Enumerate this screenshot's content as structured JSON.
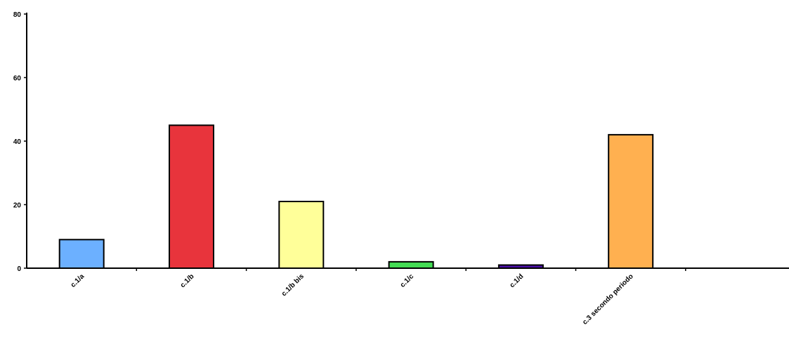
{
  "chart_data": {
    "type": "bar",
    "title": "",
    "xlabel": "",
    "ylabel": "",
    "categories": [
      "c.1/a",
      "c.1/b",
      "c.1/b bis",
      "c.1/c",
      "c.1/d",
      "c.3 secondo periodo",
      ""
    ],
    "values": [
      9,
      45,
      21,
      2,
      1,
      42,
      0
    ],
    "colors": [
      "#6cb0ff",
      "#e8343c",
      "#ffff99",
      "#44dd55",
      "#4b0fa8",
      "#ffb050",
      "#ffffff"
    ],
    "ylim": [
      0,
      80
    ],
    "yticks": [
      0,
      20,
      40,
      60,
      80
    ],
    "ytick_labels": [
      "0",
      "20",
      "40",
      "60",
      "80"
    ],
    "grid": false,
    "legend": "none"
  }
}
